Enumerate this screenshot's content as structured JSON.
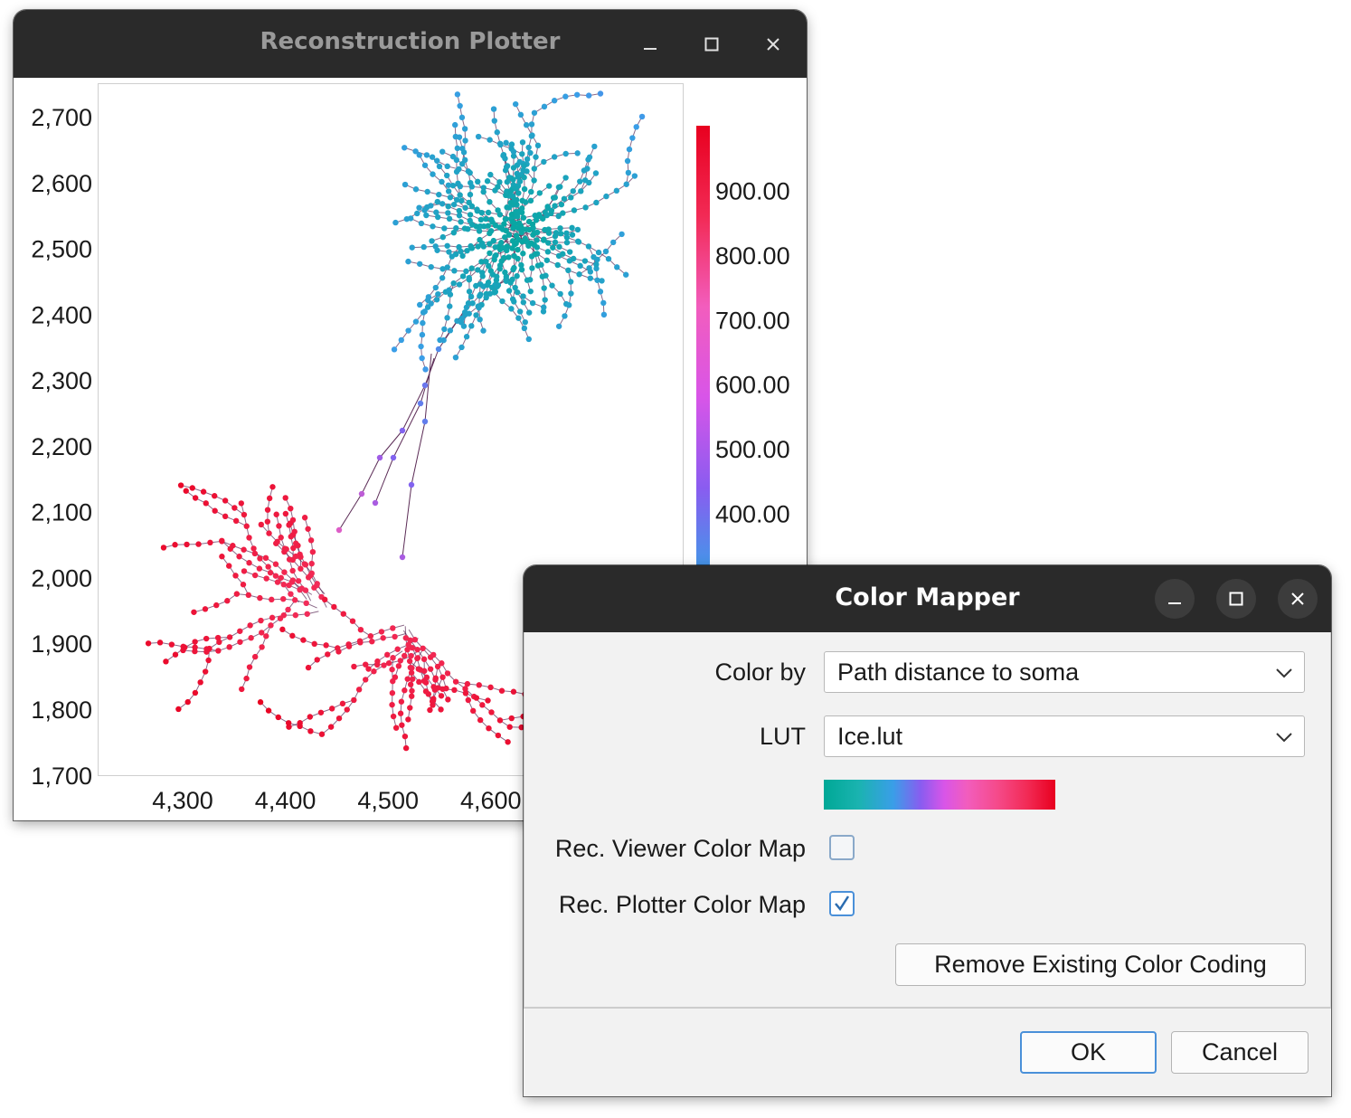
{
  "plotter": {
    "title": "Reconstruction Plotter",
    "x_ticks": [
      "4,300",
      "4,400",
      "4,500",
      "4,600"
    ],
    "y_ticks": [
      "2,700",
      "2,600",
      "2,500",
      "2,400",
      "2,300",
      "2,200",
      "2,100",
      "2,000",
      "1,900",
      "1,800",
      "1,700"
    ],
    "colorbar_ticks": [
      "900.00",
      "800.00",
      "700.00",
      "600.00",
      "500.00",
      "400.00"
    ]
  },
  "chart_data": {
    "type": "scatter",
    "x_ticks": [
      4300,
      4400,
      4500,
      4600
    ],
    "y_ticks": [
      2700,
      2600,
      2500,
      2400,
      2300,
      2200,
      2100,
      2000,
      1900,
      1800,
      1700
    ],
    "xlim": [
      4220,
      4790
    ],
    "ylim": [
      1680,
      2750
    ],
    "colorbar": {
      "ticks": [
        900,
        800,
        700,
        600,
        500,
        400
      ],
      "range": [
        300,
        1000
      ],
      "colors": [
        "#00a896",
        "#3a9ee8",
        "#8a5cf0",
        "#f25dbd",
        "#f22a55",
        "#e8001f"
      ]
    },
    "grid": false
  },
  "mapper": {
    "title": "Color Mapper",
    "color_by_label": "Color by",
    "color_by_value": "Path distance to soma",
    "lut_label": "LUT",
    "lut_value": "Ice.lut",
    "viewer_map_label": "Rec. Viewer Color Map",
    "viewer_map_checked": false,
    "plotter_map_label": "Rec. Plotter Color Map",
    "plotter_map_checked": true,
    "remove_label": "Remove Existing Color Coding",
    "ok_label": "OK",
    "cancel_label": "Cancel"
  },
  "icons": [
    "minimize-icon",
    "maximize-icon",
    "close-icon",
    "chevron-down-icon",
    "checkmark-icon"
  ]
}
